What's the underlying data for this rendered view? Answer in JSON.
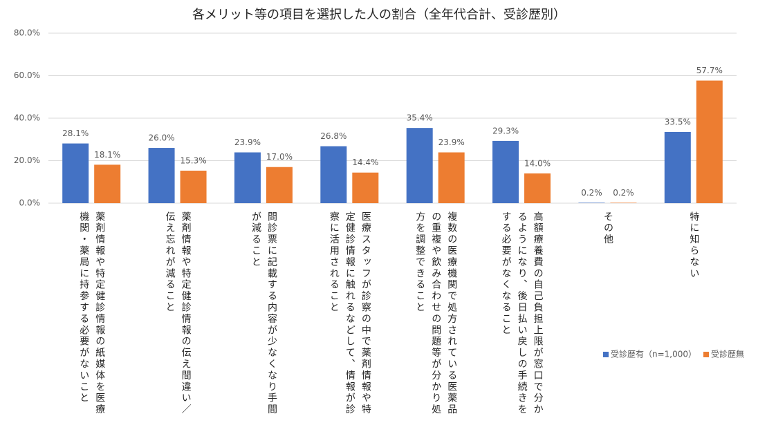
{
  "chart_data": {
    "type": "bar",
    "title": "各メリット等の項目を選択した人の割合（全年代合計、受診歴別）",
    "categories": [
      "薬剤情報や特定健診情報の紙媒体を医療\n機関・薬局に持参する必要がないこと",
      "薬剤情報や特定健診情報の伝え間違い／\n伝え忘れが減ること",
      "問診票に記載する内容が少なくなり手間\nが減ること",
      "医療スタッフが診察の中で薬剤情報や特\n定健診情報に触れるなどして、情報が診\n察に活用されること",
      "複数の医療機関で処方されている医薬品\nの重複や飲み合わせの問題等が分かり処\n方を調整できること",
      "高額療養費の自己負担上限が窓口で分か\nるようになり、後日払い戻しの手続きを\nする必要がなくなること",
      "その他",
      "特に知らない"
    ],
    "series": [
      {
        "name": "受診歴有（n=1,000）",
        "color": "#4472c4",
        "values": [
          28.1,
          26.0,
          23.9,
          26.8,
          35.4,
          29.3,
          0.2,
          33.5
        ],
        "value_labels": [
          "28.1%",
          "26.0%",
          "23.9%",
          "26.8%",
          "35.4%",
          "29.3%",
          "0.2%",
          "33.5%"
        ]
      },
      {
        "name": "受診歴無",
        "color": "#ed7d31",
        "values": [
          18.1,
          15.3,
          17.0,
          14.4,
          23.9,
          14.0,
          0.2,
          57.7
        ],
        "value_labels": [
          "18.1%",
          "15.3%",
          "17.0%",
          "14.4%",
          "23.9%",
          "14.0%",
          "0.2%",
          "57.7%"
        ]
      }
    ],
    "ylim": [
      0,
      80
    ],
    "yticks": [
      {
        "value": 0,
        "label": "0.0%"
      },
      {
        "value": 20,
        "label": "20.0%"
      },
      {
        "value": 40,
        "label": "40.0%"
      },
      {
        "value": 60,
        "label": "60.0%"
      },
      {
        "value": 80,
        "label": "80.0%"
      }
    ],
    "grid": true,
    "legend": "bottom-right"
  }
}
